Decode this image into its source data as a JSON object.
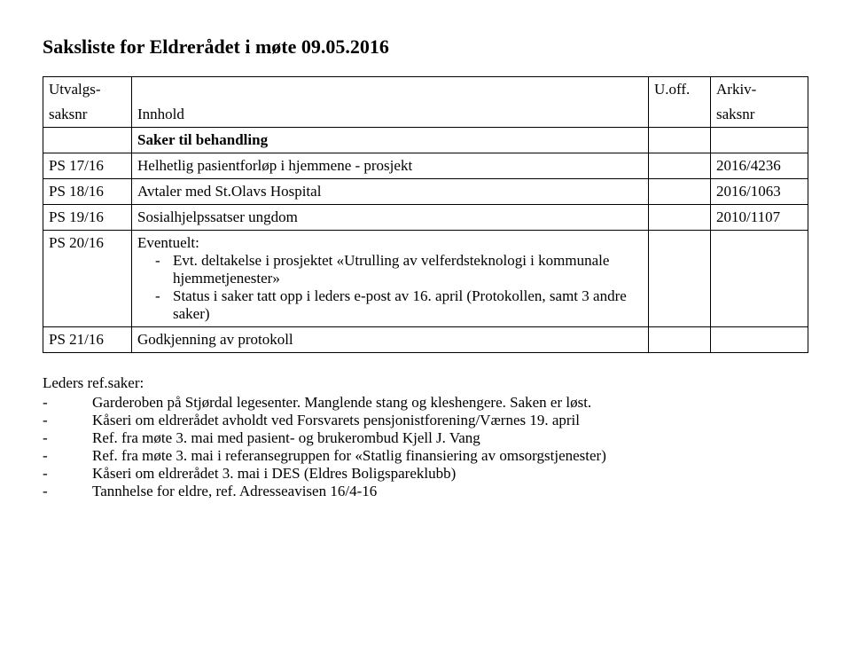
{
  "title": "Saksliste for Eldrerådet i møte 09.05.2016",
  "table": {
    "headers": {
      "c1_top": "Utvalgs-",
      "c1_bot": "saksnr",
      "c2_bot": "Innhold",
      "c3_top": "U.off.",
      "c4_top": "Arkiv-",
      "c4_bot": "saksnr"
    },
    "section_label": "Saker til behandling",
    "rows": [
      {
        "c1": "PS 17/16",
        "c2": "Helhetlig pasientforløp i hjemmene - prosjekt",
        "c4": "2016/4236"
      },
      {
        "c1": "PS 18/16",
        "c2": "Avtaler med St.Olavs Hospital",
        "c4": "2016/1063"
      },
      {
        "c1": "PS 19/16",
        "c2": "Sosialhjelpssatser ungdom",
        "c4": "2010/1107"
      }
    ],
    "eventuelt": {
      "c1": "PS 20/16",
      "label": "Eventuelt:",
      "items": [
        "Evt. deltakelse i prosjektet «Utrulling av velferdsteknologi i kommunale hjemmetjenester»",
        "Status i saker tatt opp i leders e-post av 16. april (Protokollen, samt 3 andre saker)"
      ]
    },
    "lastrow": {
      "c1": "PS 21/16",
      "c2": "Godkjenning av protokoll"
    }
  },
  "leders": {
    "heading": "Leders ref.saker:",
    "items": [
      "Garderoben på Stjørdal legesenter. Manglende stang og kleshengere. Saken er løst.",
      "Kåseri om eldrerådet avholdt ved Forsvarets pensjonistforening/Værnes 19. april",
      "Ref. fra møte 3. mai med pasient- og brukerombud Kjell J. Vang",
      "Ref. fra møte 3. mai i referansegruppen for «Statlig finansiering av omsorgstjenester)",
      "Kåseri om eldrerådet 3. mai i DES (Eldres Boligspareklubb)",
      "Tannhelse for eldre, ref. Adresseavisen 16/4-16"
    ]
  }
}
